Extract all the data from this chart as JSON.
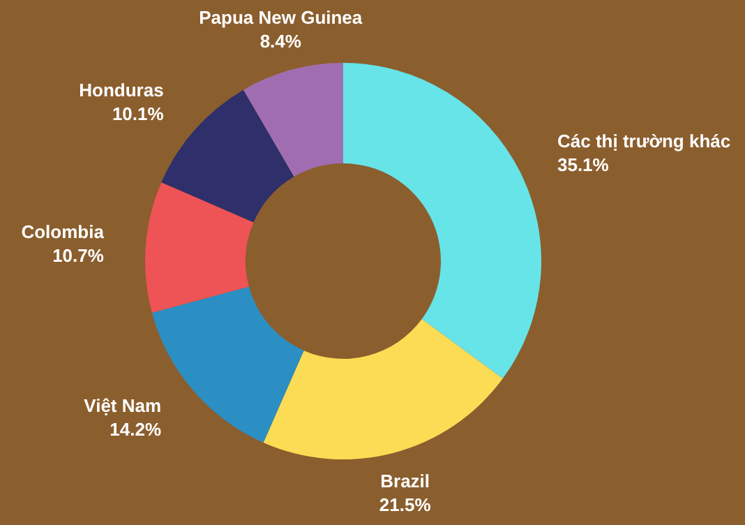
{
  "chart_data": {
    "type": "donut",
    "categories": [
      "Các thị trường khác",
      "Brazil",
      "Việt Nam",
      "Colombia",
      "Honduras",
      "Papua New Guinea"
    ],
    "values": [
      35.1,
      21.5,
      14.2,
      10.7,
      10.1,
      8.4
    ],
    "value_labels": [
      "35.1%",
      "21.5%",
      "14.2%",
      "10.7%",
      "10.1%",
      "8.4%"
    ],
    "colors": [
      "#67e4e8",
      "#fddc55",
      "#2b8fc4",
      "#ee5356",
      "#2e2f6b",
      "#a06eb0"
    ]
  }
}
